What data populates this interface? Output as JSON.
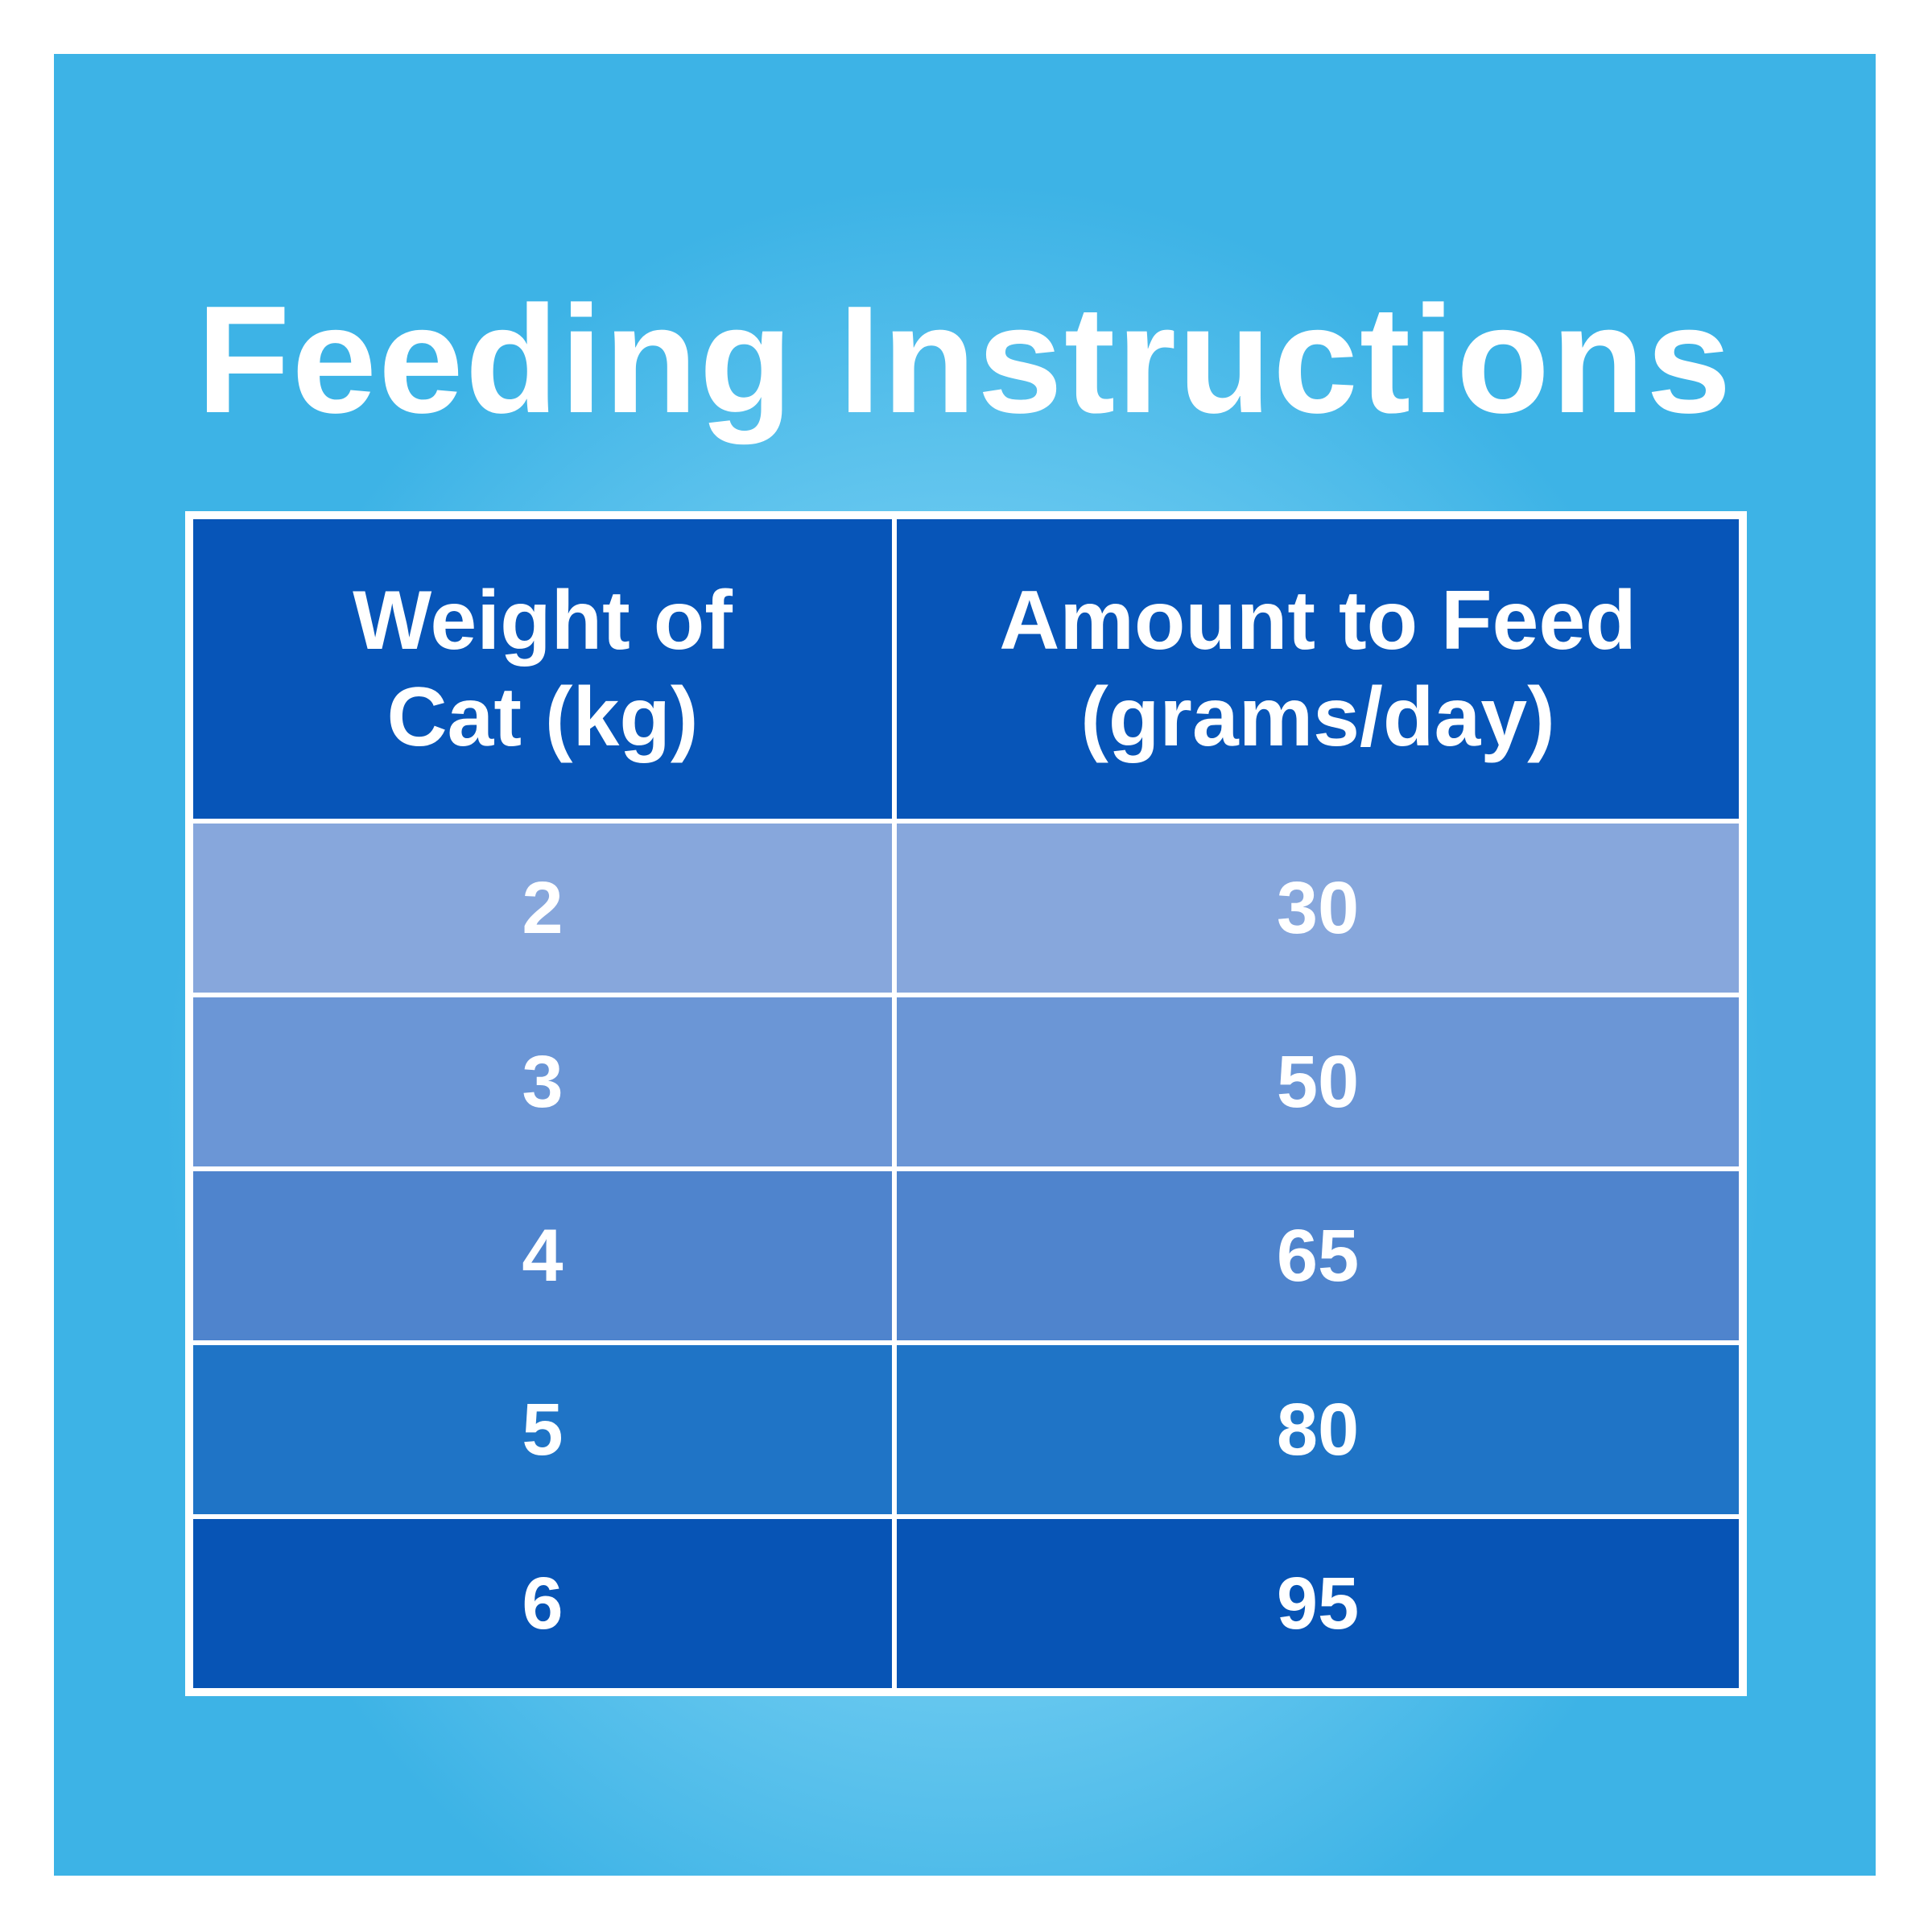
{
  "header": {
    "title": "Feeding Instructions"
  },
  "table": {
    "columns": [
      [
        "Weight of",
        "Cat (kg)"
      ],
      [
        "Amount to Feed",
        "(grams/day)"
      ]
    ],
    "rows": [
      [
        "2",
        "30"
      ],
      [
        "3",
        "50"
      ],
      [
        "4",
        "65"
      ],
      [
        "5",
        "80"
      ],
      [
        "6",
        "95"
      ]
    ]
  }
}
